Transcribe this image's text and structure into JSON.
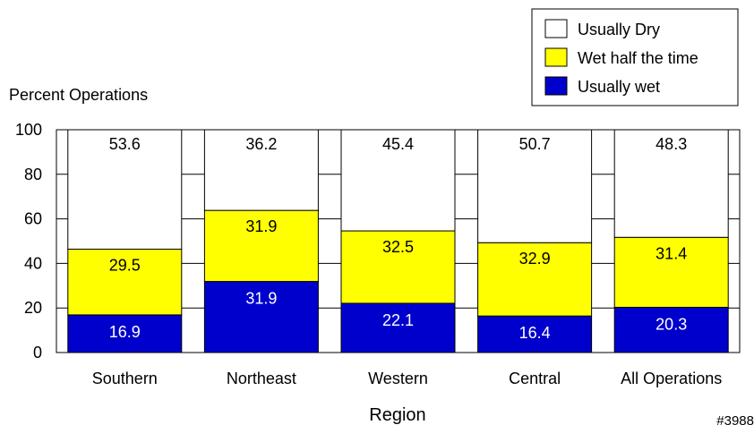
{
  "chart_data": {
    "type": "bar",
    "stacked": true,
    "categories": [
      "Southern",
      "Northeast",
      "Western",
      "Central",
      "All Operations"
    ],
    "series": [
      {
        "name": "Usually wet",
        "color": "#0000cc",
        "label_color": "#ffffff",
        "values": [
          16.9,
          31.9,
          22.1,
          16.4,
          20.3
        ]
      },
      {
        "name": "Wet half the time",
        "color": "#ffff00",
        "label_color": "#000000",
        "values": [
          29.5,
          31.9,
          32.5,
          32.9,
          31.4
        ]
      },
      {
        "name": "Usually Dry",
        "color": "#ffffff",
        "label_color": "#000000",
        "values": [
          53.6,
          36.2,
          45.4,
          50.7,
          48.3
        ]
      }
    ],
    "legend_order": [
      "Usually Dry",
      "Wet half the time",
      "Usually wet"
    ],
    "legend_position": "top-right",
    "ylabel": "Percent Operations",
    "xlabel": "Region",
    "ylim": [
      0,
      100
    ],
    "yticks": [
      0,
      20,
      40,
      60,
      80,
      100
    ],
    "grid": true,
    "footnote": "#3988"
  }
}
